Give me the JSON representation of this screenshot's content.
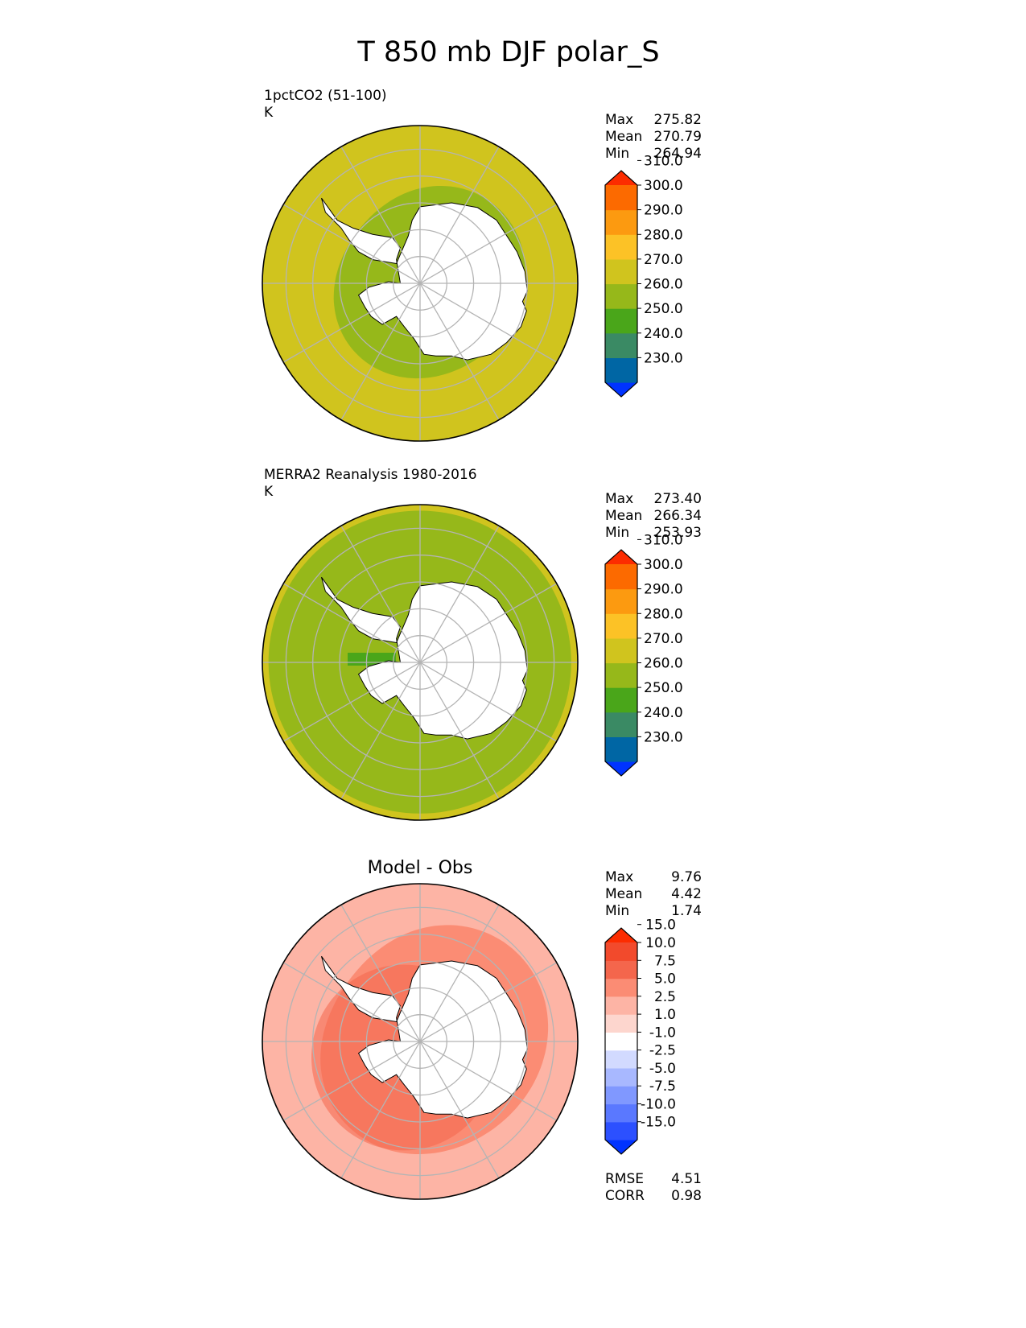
{
  "title": "T 850 mb DJF polar_S",
  "colors": {
    "ocean_warm": "#D0C41E",
    "ocean_mid": "#96B81A",
    "land_white": "#FFFFFF",
    "diff_main": "#FDB4A5",
    "diff_strong": "#FB8C74",
    "diff_stronger": "#F4664C",
    "grid": "#B4B4B4",
    "coast": "#000000"
  },
  "chart_data": [
    {
      "type": "heatmap",
      "projection": "south-polar-stereographic",
      "title": "1pctCO2 (51-100)",
      "units": "K",
      "stats": [
        {
          "label": "Max",
          "value": "275.82"
        },
        {
          "label": "Mean",
          "value": "270.79"
        },
        {
          "label": "Min",
          "value": "264.94"
        }
      ],
      "colorbar": {
        "levels": [
          "230.0",
          "240.0",
          "250.0",
          "260.0",
          "270.0",
          "280.0",
          "290.0",
          "300.0",
          "310.0"
        ],
        "colors": [
          "#0033FF",
          "#0066A4",
          "#3A8A64",
          "#4AA61A",
          "#96B81A",
          "#D0C41E",
          "#FCC226",
          "#FC9A10",
          "#FC6A00",
          "#FC2C00"
        ],
        "extend": "both"
      }
    },
    {
      "type": "heatmap",
      "projection": "south-polar-stereographic",
      "title": "MERRA2 Reanalysis 1980-2016",
      "units": "K",
      "stats": [
        {
          "label": "Max",
          "value": "273.40"
        },
        {
          "label": "Mean",
          "value": "266.34"
        },
        {
          "label": "Min",
          "value": "253.93"
        }
      ],
      "colorbar": {
        "levels": [
          "230.0",
          "240.0",
          "250.0",
          "260.0",
          "270.0",
          "280.0",
          "290.0",
          "300.0",
          "310.0"
        ],
        "colors": [
          "#0033FF",
          "#0066A4",
          "#3A8A64",
          "#4AA61A",
          "#96B81A",
          "#D0C41E",
          "#FCC226",
          "#FC9A10",
          "#FC6A00",
          "#FC2C00"
        ],
        "extend": "both"
      }
    },
    {
      "type": "heatmap",
      "projection": "south-polar-stereographic",
      "title": "Model - Obs",
      "units": "",
      "stats": [
        {
          "label": "Max",
          "value": "9.76"
        },
        {
          "label": "Mean",
          "value": "4.42"
        },
        {
          "label": "Min",
          "value": "1.74"
        }
      ],
      "colorbar": {
        "levels": [
          "-15.0",
          "-10.0",
          "-7.5",
          "-5.0",
          "-2.5",
          "-1.0",
          "1.0",
          "2.5",
          "5.0",
          "7.5",
          "10.0",
          "15.0"
        ],
        "colors": [
          "#0033FF",
          "#2C50FF",
          "#5A78FF",
          "#8098FF",
          "#A8B8FF",
          "#D2DAFF",
          "#FFFFFF",
          "#FDD6CE",
          "#FDB4A5",
          "#FB8C74",
          "#F4664C",
          "#F24A2C",
          "#FC2C00"
        ],
        "extend": "both"
      },
      "metrics": [
        {
          "label": "RMSE",
          "value": "4.51"
        },
        {
          "label": "CORR",
          "value": "0.98"
        }
      ]
    }
  ]
}
